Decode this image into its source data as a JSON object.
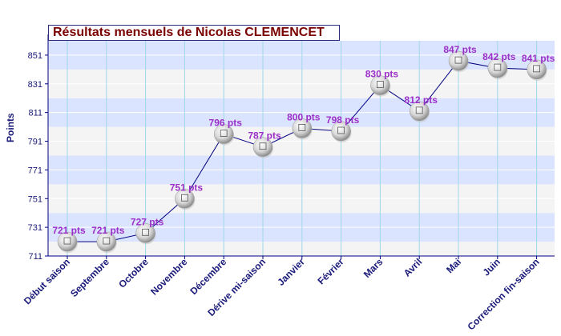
{
  "chart_data": {
    "type": "line",
    "title": "Résultats mensuels de Nicolas CLEMENCET",
    "xlabel": "",
    "ylabel": "Points",
    "categories": [
      "Début saison",
      "Septembre",
      "Octobre",
      "Novembre",
      "Décembre",
      "Dérive mi-saison",
      "Janvier",
      "Février",
      "Mars",
      "Avril",
      "Mai",
      "Juin",
      "Correction fin-saison"
    ],
    "series": [
      {
        "values": [
          721,
          721,
          727,
          751,
          796,
          787,
          800,
          798,
          830,
          812,
          847,
          842,
          841
        ]
      }
    ],
    "data_labels": [
      "721 pts",
      "721 pts",
      "727 pts",
      "751 pts",
      "796 pts",
      "787 pts",
      "800 pts",
      "798 pts",
      "830 pts",
      "812 pts",
      "847 pts",
      "842 pts",
      "841 pts"
    ],
    "yticks": [
      711,
      731,
      751,
      771,
      791,
      811,
      831,
      851
    ],
    "ylim": [
      711,
      861
    ],
    "grid": true,
    "legend": "none",
    "colors": {
      "line": "#000080",
      "label": "#9b2fc9",
      "title": "#7a0000",
      "axis_text": "#1a1a7a",
      "band_blue": "#dbe4ff",
      "band_grey": "#f4f4f4",
      "vgrid": "#9ed8e8"
    }
  }
}
